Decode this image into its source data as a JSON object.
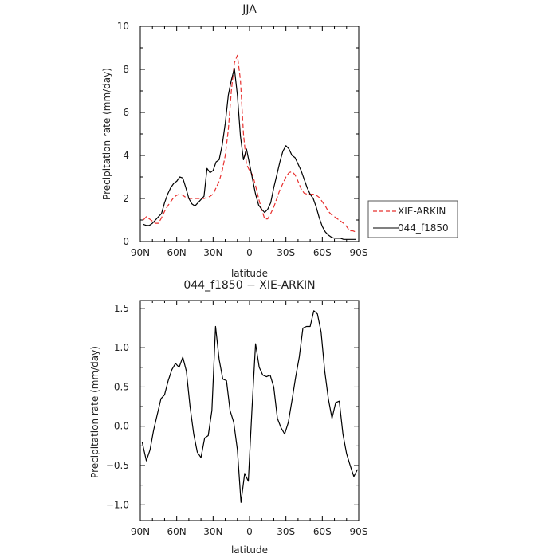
{
  "chart_data": [
    {
      "type": "line",
      "title": "JJA",
      "xlabel": "latitude",
      "ylabel": "Precipitation rate  (mm/day)",
      "xlim": [
        -90,
        90
      ],
      "ylim": [
        0,
        10
      ],
      "x_tick_values": [
        -90,
        -60,
        -30,
        0,
        30,
        60,
        90
      ],
      "x_tick_labels": [
        "90N",
        "60N",
        "30N",
        "0",
        "30S",
        "60S",
        "90S"
      ],
      "y_tick_values": [
        0,
        2,
        4,
        6,
        8,
        10
      ],
      "y_tick_labels": [
        "0",
        "2",
        "4",
        "6",
        "8",
        "10"
      ],
      "legend_position": "right",
      "series": [
        {
          "name": "XIE-ARKIN",
          "color": "#e8312f",
          "dash": "dashed",
          "x": [
            -87.5,
            -85,
            -82.5,
            -80,
            -77.5,
            -75,
            -72.5,
            -70,
            -67.5,
            -65,
            -62.5,
            -60,
            -57.5,
            -55,
            -52.5,
            -50,
            -47.5,
            -45,
            -42.5,
            -40,
            -37.5,
            -35,
            -32.5,
            -30,
            -27.5,
            -25,
            -22.5,
            -20,
            -17.5,
            -15,
            -12.5,
            -10,
            -7.5,
            -5,
            -2.5,
            0,
            2.5,
            5,
            7.5,
            10,
            12.5,
            15,
            17.5,
            20,
            22.5,
            25,
            27.5,
            30,
            32.5,
            35,
            37.5,
            40,
            42.5,
            45,
            47.5,
            50,
            52.5,
            55,
            57.5,
            60,
            62.5,
            65,
            67.5,
            70,
            72.5,
            75,
            77.5,
            80,
            82.5,
            85,
            87.5
          ],
          "y": [
            1.0,
            1.15,
            1.05,
            0.95,
            0.85,
            0.85,
            1.1,
            1.4,
            1.65,
            1.85,
            2.05,
            2.15,
            2.2,
            2.15,
            2.05,
            2.0,
            2.0,
            2.0,
            2.0,
            2.0,
            2.0,
            2.05,
            2.1,
            2.2,
            2.5,
            2.8,
            3.3,
            4.0,
            5.2,
            7.0,
            8.3,
            8.65,
            7.5,
            5.0,
            3.6,
            3.3,
            3.1,
            2.6,
            2.0,
            1.5,
            1.05,
            1.05,
            1.3,
            1.6,
            2.0,
            2.4,
            2.7,
            3.0,
            3.2,
            3.25,
            3.1,
            2.8,
            2.45,
            2.25,
            2.2,
            2.2,
            2.2,
            2.15,
            2.05,
            1.85,
            1.65,
            1.4,
            1.25,
            1.15,
            1.05,
            0.95,
            0.85,
            0.7,
            0.5,
            0.5,
            0.45
          ]
        },
        {
          "name": "044_f1850",
          "color": "#000000",
          "dash": "solid",
          "x": [
            -87.5,
            -85,
            -82.5,
            -80,
            -77.5,
            -75,
            -72.5,
            -70,
            -67.5,
            -65,
            -62.5,
            -60,
            -57.5,
            -55,
            -52.5,
            -50,
            -47.5,
            -45,
            -42.5,
            -40,
            -37.5,
            -35,
            -32.5,
            -30,
            -27.5,
            -25,
            -22.5,
            -20,
            -17.5,
            -15,
            -12.5,
            -10,
            -7.5,
            -5,
            -2.5,
            0,
            2.5,
            5,
            7.5,
            10,
            12.5,
            15,
            17.5,
            20,
            22.5,
            25,
            27.5,
            30,
            32.5,
            35,
            37.5,
            40,
            42.5,
            45,
            47.5,
            50,
            52.5,
            55,
            57.5,
            60,
            62.5,
            65,
            67.5,
            70,
            72.5,
            75,
            77.5,
            80,
            82.5,
            85,
            87.5
          ],
          "y": [
            0.8,
            0.75,
            0.75,
            0.85,
            1.0,
            1.15,
            1.3,
            1.8,
            2.2,
            2.5,
            2.7,
            2.8,
            3.0,
            2.95,
            2.5,
            2.0,
            1.75,
            1.65,
            1.8,
            1.95,
            2.1,
            3.4,
            3.2,
            3.3,
            3.7,
            3.8,
            4.5,
            5.5,
            6.8,
            7.5,
            8.05,
            6.8,
            4.9,
            3.8,
            4.3,
            3.6,
            2.9,
            2.2,
            1.7,
            1.5,
            1.35,
            1.5,
            1.8,
            2.5,
            3.1,
            3.7,
            4.2,
            4.45,
            4.3,
            4.0,
            3.9,
            3.6,
            3.3,
            2.9,
            2.5,
            2.2,
            2.0,
            1.6,
            1.1,
            0.7,
            0.45,
            0.3,
            0.2,
            0.15,
            0.15,
            0.15,
            0.1,
            0.1,
            0.1,
            0.1,
            0.1
          ]
        }
      ]
    },
    {
      "type": "line",
      "title": "044_f1850 − XIE-ARKIN",
      "xlabel": "latitude",
      "ylabel": "Precipitation rate  (mm/day)",
      "xlim": [
        -90,
        90
      ],
      "ylim": [
        -1.2,
        1.6
      ],
      "x_tick_values": [
        -90,
        -60,
        -30,
        0,
        30,
        60,
        90
      ],
      "x_tick_labels": [
        "90N",
        "60N",
        "30N",
        "0",
        "30S",
        "60S",
        "90S"
      ],
      "y_tick_values": [
        -1.0,
        -0.5,
        0.0,
        0.5,
        1.0,
        1.5
      ],
      "y_tick_labels": [
        "−1.0",
        "−0.5",
        "0.0",
        "0.5",
        "1.0",
        "1.5"
      ],
      "series": [
        {
          "color": "#000000",
          "dash": "solid",
          "x": [
            -88.5,
            -85,
            -82,
            -79,
            -76,
            -73,
            -70,
            -67,
            -64,
            -61,
            -58,
            -55,
            -52,
            -49,
            -46,
            -43,
            -40,
            -37,
            -34,
            -31,
            -28,
            -25,
            -22,
            -19,
            -16,
            -13,
            -10,
            -7,
            -4,
            -1,
            2,
            5,
            8,
            11,
            14,
            17,
            20,
            23,
            26,
            29,
            32,
            35,
            38,
            41,
            44,
            47,
            50,
            53,
            56,
            59,
            62,
            65,
            68,
            71,
            74,
            77,
            80,
            83,
            86,
            89
          ],
          "y": [
            -0.2,
            -0.44,
            -0.3,
            -0.05,
            0.15,
            0.35,
            0.4,
            0.58,
            0.72,
            0.8,
            0.75,
            0.88,
            0.7,
            0.25,
            -0.1,
            -0.33,
            -0.4,
            -0.15,
            -0.12,
            0.2,
            1.27,
            0.85,
            0.6,
            0.58,
            0.2,
            0.05,
            -0.3,
            -0.97,
            -0.6,
            -0.7,
            0.2,
            1.05,
            0.75,
            0.65,
            0.63,
            0.65,
            0.5,
            0.1,
            -0.02,
            -0.1,
            0.05,
            0.33,
            0.62,
            0.88,
            1.25,
            1.27,
            1.27,
            1.47,
            1.43,
            1.2,
            0.7,
            0.35,
            0.1,
            0.3,
            0.32,
            -0.1,
            -0.35,
            -0.5,
            -0.64,
            -0.55
          ]
        }
      ]
    }
  ]
}
